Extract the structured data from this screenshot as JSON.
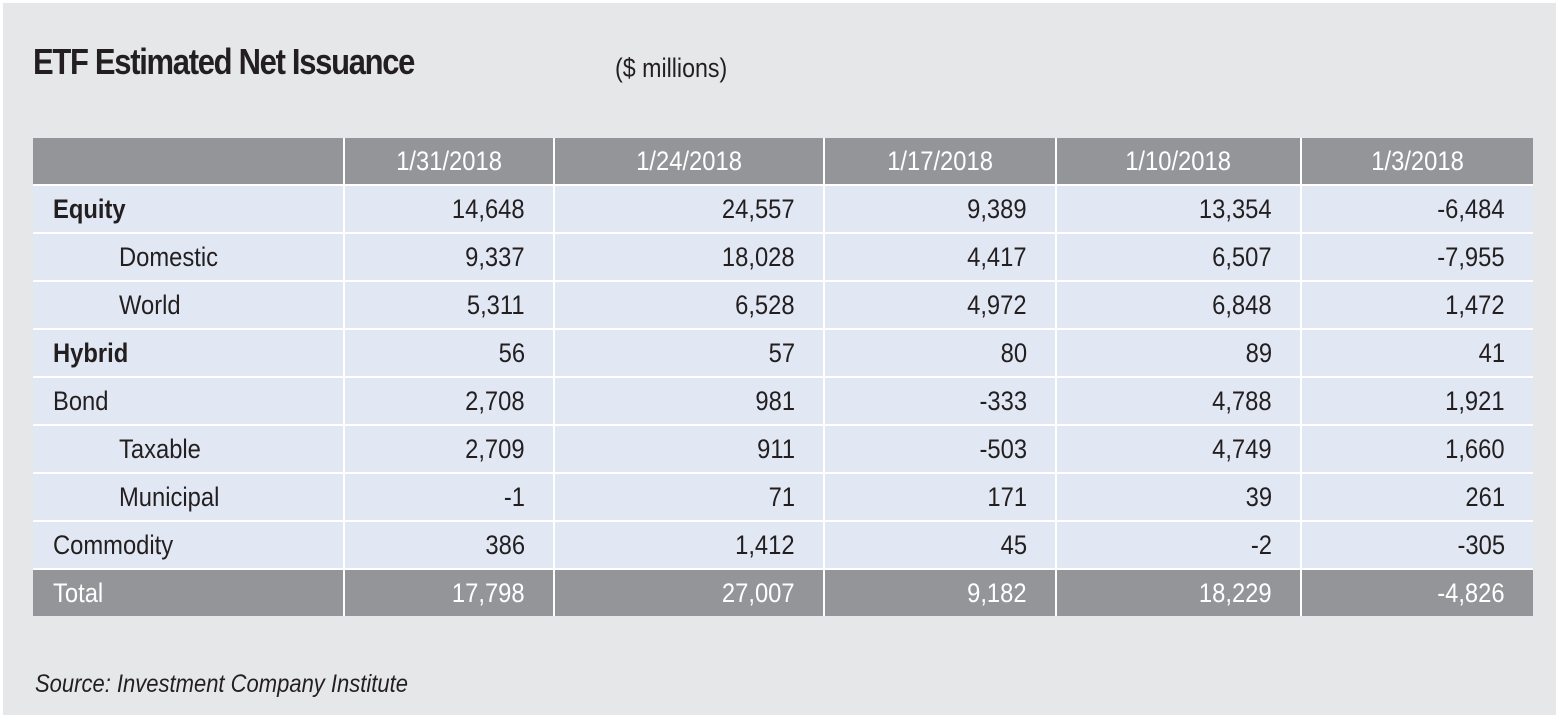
{
  "header": {
    "title": "ETF Estimated Net Issuance",
    "units": "($ millions)"
  },
  "table": {
    "columns": [
      "",
      "1/31/2018",
      "1/24/2018",
      "1/17/2018",
      "1/10/2018",
      "1/3/2018"
    ],
    "rows": [
      {
        "label": "Equity",
        "style": "bold",
        "values": [
          "14,648",
          "24,557",
          "9,389",
          "13,354",
          "-6,484"
        ]
      },
      {
        "label": "Domestic",
        "style": "indent",
        "values": [
          "9,337",
          "18,028",
          "4,417",
          "6,507",
          "-7,955"
        ]
      },
      {
        "label": "World",
        "style": "indent",
        "values": [
          "5,311",
          "6,528",
          "4,972",
          "6,848",
          "1,472"
        ]
      },
      {
        "label": "Hybrid",
        "style": "bold",
        "values": [
          "56",
          "57",
          "80",
          "89",
          "41"
        ]
      },
      {
        "label": "Bond",
        "style": "normal",
        "values": [
          "2,708",
          "981",
          "-333",
          "4,788",
          "1,921"
        ]
      },
      {
        "label": "Taxable",
        "style": "indent",
        "values": [
          "2,709",
          "911",
          "-503",
          "4,749",
          "1,660"
        ]
      },
      {
        "label": "Municipal",
        "style": "indent",
        "values": [
          "-1",
          "71",
          "171",
          "39",
          "261"
        ]
      },
      {
        "label": "Commodity",
        "style": "normal",
        "values": [
          "386",
          "1,412",
          "45",
          "-2",
          "-305"
        ]
      }
    ],
    "total": {
      "label": "Total",
      "values": [
        "17,798",
        "27,007",
        "9,182",
        "18,229",
        "-4,826"
      ]
    }
  },
  "footer": {
    "source": "Source: Investment Company Institute"
  },
  "colors": {
    "panel_bg": "#e6e7e9",
    "header_bg": "#939598",
    "row_bg": "#e1e8f4",
    "text": "#231f20"
  }
}
